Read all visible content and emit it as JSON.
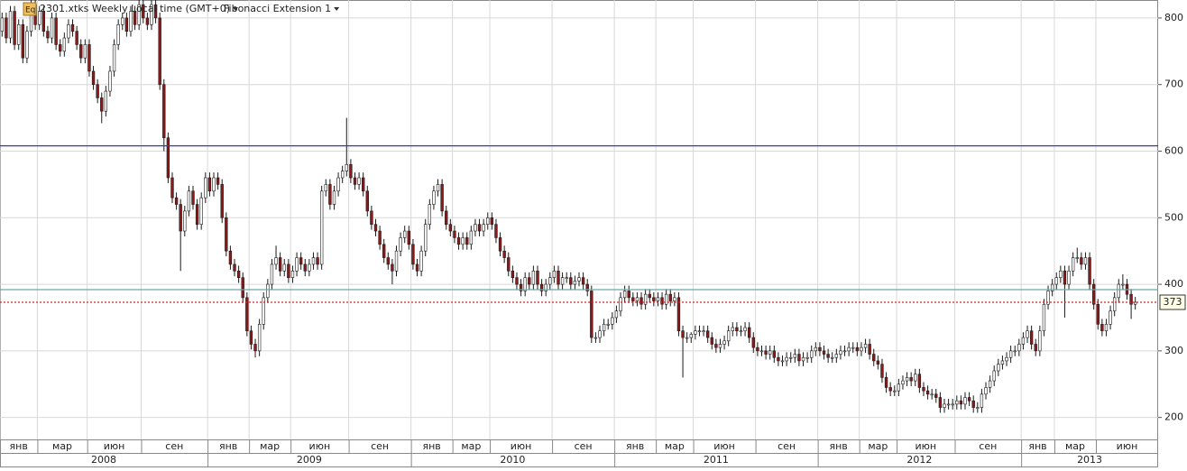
{
  "chart_data": {
    "type": "candlestick",
    "badge": "Eq",
    "symbol_text": "2301.xtks Weekly Local time (GMT+0)",
    "indicator": "Fibonacci Extension 1",
    "ylim": [
      167,
      827
    ],
    "yticks": [
      200,
      300,
      400,
      500,
      600,
      700,
      800
    ],
    "xlim": [
      0,
      279
    ],
    "grid": true,
    "up_color": "#ffffff",
    "down_color": "#8b1a1a",
    "outline_color": "#1a1a1a",
    "month_ticks": [
      {
        "value": 0,
        "label": "янв"
      },
      {
        "value": 9,
        "label": "мар"
      },
      {
        "value": 21,
        "label": "июн"
      },
      {
        "value": 34,
        "label": "сен"
      },
      {
        "value": 50,
        "label": "янв"
      },
      {
        "value": 60,
        "label": "мар"
      },
      {
        "value": 70,
        "label": "июн"
      },
      {
        "value": 84,
        "label": "сен"
      },
      {
        "value": 99,
        "label": "янв"
      },
      {
        "value": 109,
        "label": "мар"
      },
      {
        "value": 118,
        "label": "июн"
      },
      {
        "value": 133,
        "label": "сен"
      },
      {
        "value": 148,
        "label": "янв"
      },
      {
        "value": 158,
        "label": "мар"
      },
      {
        "value": 167,
        "label": "июн"
      },
      {
        "value": 182,
        "label": "сен"
      },
      {
        "value": 197,
        "label": "янв"
      },
      {
        "value": 207,
        "label": "мар"
      },
      {
        "value": 216,
        "label": "июн"
      },
      {
        "value": 230,
        "label": "сен"
      },
      {
        "value": 246,
        "label": "янв"
      },
      {
        "value": 254,
        "label": "мар"
      },
      {
        "value": 264,
        "label": "июн"
      }
    ],
    "year_ticks": [
      {
        "value": 0,
        "label": "2008"
      },
      {
        "value": 50,
        "label": "2009"
      },
      {
        "value": 99,
        "label": "2010"
      },
      {
        "value": 148,
        "label": "2011"
      },
      {
        "value": 197,
        "label": "2012"
      },
      {
        "value": 246,
        "label": "2013"
      }
    ],
    "hlines": [
      {
        "value": 608,
        "color": "#1f3fd6",
        "style": "solid"
      },
      {
        "value": 392,
        "color": "#6aa6a6",
        "style": "solid"
      },
      {
        "value": 373,
        "color": "#e02020",
        "style": "dotted"
      }
    ],
    "open": [
      780,
      800,
      770,
      810,
      760,
      790,
      740,
      780,
      820,
      790,
      810,
      780,
      770,
      800,
      760,
      750,
      770,
      790,
      780,
      760,
      740,
      760,
      720,
      700,
      680,
      660,
      690,
      720,
      760,
      790,
      800,
      780,
      810,
      790,
      820,
      800,
      790,
      820,
      800,
      700,
      620,
      560,
      530,
      520,
      480,
      510,
      540,
      520,
      490,
      530,
      560,
      540,
      560,
      550,
      500,
      450,
      430,
      420,
      410,
      380,
      330,
      310,
      300,
      340,
      380,
      400,
      430,
      440,
      420,
      430,
      410,
      420,
      440,
      430,
      420,
      430,
      440,
      430,
      540,
      550,
      520,
      540,
      560,
      570,
      580,
      560,
      550,
      560,
      540,
      510,
      490,
      480,
      460,
      440,
      430,
      420,
      450,
      470,
      480,
      460,
      430,
      420,
      450,
      490,
      520,
      540,
      550,
      510,
      490,
      480,
      470,
      460,
      470,
      460,
      480,
      490,
      480,
      490,
      500,
      490,
      470,
      450,
      440,
      420,
      410,
      400,
      390,
      410,
      400,
      420,
      400,
      390,
      400,
      410,
      420,
      400,
      410,
      410,
      400,
      405,
      410,
      400,
      390,
      320,
      320,
      330,
      340,
      340,
      350,
      360,
      380,
      390,
      380,
      375,
      380,
      370,
      385,
      380,
      375,
      380,
      370,
      385,
      375,
      380,
      330,
      320,
      320,
      325,
      330,
      330,
      330,
      320,
      310,
      305,
      310,
      315,
      330,
      335,
      330,
      330,
      335,
      320,
      305,
      300,
      300,
      295,
      300,
      290,
      285,
      285,
      290,
      290,
      295,
      285,
      290,
      290,
      300,
      305,
      300,
      295,
      290,
      290,
      295,
      300,
      300,
      305,
      305,
      300,
      305,
      310,
      295,
      285,
      280,
      260,
      245,
      240,
      240,
      250,
      255,
      260,
      255,
      265,
      245,
      240,
      235,
      235,
      230,
      215,
      220,
      220,
      220,
      225,
      220,
      230,
      225,
      215,
      215,
      235,
      245,
      255,
      270,
      280,
      285,
      290,
      300,
      300,
      310,
      320,
      330,
      310,
      300,
      330,
      370,
      390,
      400,
      410,
      420,
      400,
      420,
      440,
      440,
      430,
      440,
      400,
      370,
      340,
      330,
      340,
      360,
      380,
      400,
      400,
      385,
      370
    ],
    "high": [
      808,
      808,
      818,
      818,
      798,
      798,
      788,
      828,
      828,
      818,
      818,
      788,
      808,
      808,
      768,
      778,
      798,
      798,
      788,
      768,
      768,
      768,
      728,
      708,
      688,
      698,
      728,
      768,
      798,
      808,
      808,
      818,
      818,
      828,
      828,
      808,
      828,
      828,
      808,
      708,
      628,
      568,
      538,
      528,
      518,
      548,
      548,
      528,
      538,
      568,
      568,
      568,
      568,
      558,
      508,
      458,
      438,
      428,
      418,
      388,
      338,
      318,
      348,
      388,
      408,
      438,
      458,
      448,
      438,
      438,
      428,
      448,
      448,
      438,
      438,
      448,
      448,
      548,
      558,
      558,
      548,
      568,
      578,
      650,
      588,
      568,
      568,
      568,
      548,
      518,
      498,
      488,
      468,
      448,
      438,
      458,
      478,
      488,
      488,
      468,
      438,
      458,
      498,
      528,
      548,
      558,
      558,
      518,
      498,
      488,
      478,
      478,
      478,
      488,
      498,
      498,
      498,
      508,
      508,
      498,
      478,
      458,
      448,
      428,
      418,
      408,
      418,
      418,
      428,
      428,
      408,
      408,
      418,
      428,
      428,
      418,
      418,
      418,
      413,
      418,
      418,
      408,
      398,
      328,
      338,
      348,
      348,
      358,
      368,
      388,
      398,
      398,
      388,
      388,
      388,
      393,
      393,
      388,
      388,
      388,
      393,
      393,
      388,
      388,
      338,
      328,
      328,
      338,
      338,
      338,
      338,
      328,
      318,
      318,
      323,
      338,
      343,
      343,
      338,
      343,
      343,
      328,
      313,
      308,
      308,
      308,
      308,
      298,
      293,
      298,
      298,
      303,
      303,
      298,
      298,
      308,
      313,
      313,
      308,
      303,
      298,
      303,
      308,
      308,
      313,
      313,
      313,
      313,
      318,
      318,
      303,
      293,
      288,
      268,
      253,
      248,
      258,
      263,
      268,
      268,
      273,
      273,
      253,
      248,
      243,
      243,
      238,
      228,
      228,
      228,
      233,
      233,
      238,
      238,
      233,
      223,
      243,
      253,
      263,
      278,
      288,
      293,
      298,
      308,
      308,
      318,
      328,
      338,
      338,
      318,
      338,
      378,
      398,
      408,
      418,
      428,
      428,
      428,
      448,
      455,
      448,
      448,
      448,
      408,
      378,
      348,
      348,
      368,
      388,
      408,
      415,
      408,
      393,
      381
    ],
    "low": [
      772,
      762,
      762,
      752,
      752,
      732,
      732,
      772,
      782,
      782,
      772,
      762,
      762,
      752,
      742,
      742,
      762,
      772,
      752,
      732,
      732,
      712,
      692,
      672,
      642,
      652,
      682,
      712,
      752,
      782,
      772,
      772,
      782,
      782,
      792,
      782,
      782,
      792,
      692,
      600,
      552,
      522,
      512,
      420,
      472,
      502,
      512,
      482,
      482,
      522,
      532,
      532,
      542,
      492,
      442,
      422,
      412,
      402,
      372,
      322,
      302,
      290,
      292,
      332,
      372,
      392,
      422,
      412,
      412,
      402,
      402,
      412,
      422,
      412,
      412,
      422,
      422,
      422,
      532,
      512,
      512,
      532,
      552,
      562,
      552,
      542,
      542,
      532,
      502,
      482,
      472,
      452,
      432,
      422,
      400,
      412,
      442,
      462,
      452,
      422,
      412,
      412,
      442,
      482,
      512,
      532,
      502,
      482,
      472,
      462,
      452,
      452,
      452,
      452,
      472,
      472,
      472,
      482,
      482,
      462,
      442,
      432,
      412,
      402,
      392,
      382,
      382,
      392,
      392,
      392,
      382,
      382,
      392,
      402,
      392,
      392,
      402,
      392,
      392,
      397,
      392,
      382,
      312,
      312,
      312,
      322,
      332,
      332,
      342,
      352,
      372,
      372,
      367,
      367,
      362,
      362,
      372,
      367,
      367,
      362,
      362,
      367,
      367,
      322,
      260,
      312,
      312,
      317,
      322,
      322,
      312,
      302,
      297,
      297,
      302,
      307,
      322,
      322,
      322,
      322,
      312,
      297,
      292,
      292,
      287,
      287,
      282,
      277,
      277,
      277,
      282,
      282,
      277,
      277,
      282,
      282,
      292,
      292,
      287,
      282,
      282,
      282,
      287,
      292,
      292,
      297,
      292,
      292,
      297,
      287,
      277,
      272,
      252,
      237,
      232,
      232,
      232,
      242,
      247,
      247,
      247,
      237,
      232,
      227,
      227,
      222,
      207,
      207,
      212,
      212,
      212,
      212,
      212,
      217,
      207,
      207,
      207,
      227,
      237,
      247,
      262,
      272,
      277,
      282,
      292,
      292,
      302,
      312,
      302,
      292,
      292,
      322,
      362,
      382,
      392,
      402,
      350,
      392,
      412,
      432,
      422,
      422,
      392,
      362,
      332,
      322,
      322,
      332,
      352,
      372,
      392,
      377,
      348,
      362
    ],
    "close": [
      800,
      770,
      810,
      760,
      790,
      740,
      780,
      820,
      790,
      810,
      780,
      770,
      800,
      760,
      750,
      770,
      790,
      780,
      760,
      740,
      760,
      720,
      700,
      680,
      660,
      690,
      720,
      760,
      790,
      800,
      780,
      810,
      790,
      820,
      800,
      790,
      820,
      800,
      700,
      620,
      560,
      530,
      520,
      480,
      510,
      540,
      520,
      490,
      530,
      560,
      540,
      560,
      550,
      500,
      450,
      430,
      420,
      410,
      380,
      330,
      310,
      300,
      340,
      380,
      400,
      430,
      440,
      420,
      430,
      410,
      420,
      440,
      430,
      420,
      430,
      440,
      430,
      540,
      550,
      520,
      540,
      560,
      570,
      580,
      560,
      550,
      560,
      540,
      510,
      490,
      480,
      460,
      440,
      430,
      420,
      450,
      470,
      480,
      460,
      430,
      420,
      450,
      490,
      520,
      540,
      550,
      510,
      490,
      480,
      470,
      460,
      470,
      460,
      480,
      490,
      480,
      490,
      500,
      490,
      470,
      450,
      440,
      420,
      410,
      400,
      390,
      410,
      400,
      420,
      400,
      390,
      400,
      410,
      420,
      400,
      410,
      410,
      400,
      405,
      410,
      400,
      390,
      320,
      320,
      330,
      340,
      340,
      350,
      360,
      380,
      390,
      380,
      375,
      380,
      370,
      385,
      380,
      375,
      380,
      370,
      385,
      375,
      380,
      330,
      320,
      320,
      325,
      330,
      330,
      330,
      320,
      310,
      305,
      310,
      315,
      330,
      335,
      330,
      330,
      335,
      320,
      305,
      300,
      300,
      295,
      300,
      290,
      285,
      285,
      290,
      290,
      295,
      285,
      290,
      290,
      300,
      305,
      300,
      295,
      290,
      290,
      295,
      300,
      300,
      305,
      305,
      300,
      305,
      310,
      295,
      285,
      280,
      260,
      245,
      240,
      240,
      250,
      255,
      260,
      255,
      265,
      245,
      240,
      235,
      235,
      230,
      215,
      220,
      220,
      220,
      225,
      220,
      230,
      225,
      215,
      215,
      235,
      245,
      255,
      270,
      280,
      285,
      290,
      300,
      300,
      310,
      320,
      330,
      310,
      300,
      330,
      370,
      390,
      400,
      410,
      420,
      400,
      420,
      440,
      440,
      430,
      440,
      400,
      370,
      340,
      330,
      340,
      360,
      380,
      400,
      400,
      385,
      370,
      373
    ]
  }
}
